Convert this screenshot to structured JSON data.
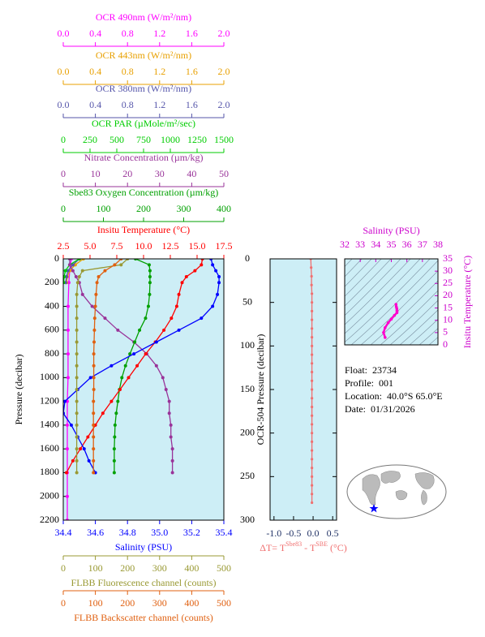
{
  "chart_data": [
    {
      "type": "profile",
      "ylabel": "Pressure (decibar)",
      "ylim": [
        0,
        2200
      ],
      "y_inverted": true,
      "yticks": [
        0,
        200,
        400,
        600,
        800,
        1000,
        1200,
        1400,
        1600,
        1800,
        2000,
        2200
      ],
      "series": [
        {
          "name": "OCR 490nm (W/m²/nm)",
          "color": "#ff00ff",
          "xlim": [
            0,
            2
          ],
          "xticks": [
            {
              "value": 0,
              "label": "0.0"
            },
            0.4,
            0.8,
            1.2,
            1.6,
            {
              "value": 2,
              "label": "2.0"
            }
          ],
          "pressure": [
            0,
            100,
            200,
            400,
            600,
            800,
            1000,
            1200,
            1400,
            1600,
            1800,
            2000,
            2200
          ],
          "values": [
            0.1,
            0.08,
            0.07,
            0.06,
            0.06,
            0.06,
            0.06,
            0.05,
            0.05,
            0.05,
            0.05,
            0.05,
            0.05
          ]
        },
        {
          "name": "OCR 443nm (W/m²/nm)",
          "color": "#e8a000",
          "xlim": [
            0,
            2
          ],
          "xticks": [
            {
              "value": 0,
              "label": "0.0"
            },
            0.4,
            0.8,
            1.2,
            1.6,
            {
              "value": 2,
              "label": "2.0"
            }
          ],
          "pressure": [
            0,
            50,
            100,
            150,
            200
          ],
          "values": [
            0.25,
            0.15,
            0.08,
            0.05,
            0.04
          ]
        },
        {
          "name": "OCR 380nm (W/m²/nm)",
          "color": "#5555aa",
          "xlim": [
            0,
            2
          ],
          "xticks": [
            {
              "value": 0,
              "label": "0.0"
            },
            0.4,
            0.8,
            1.2,
            1.6,
            {
              "value": 2,
              "label": "2.0"
            }
          ],
          "pressure": [
            0,
            50,
            100,
            150,
            200
          ],
          "values": [
            0.2,
            0.12,
            0.06,
            0.04,
            0.03
          ]
        },
        {
          "name": "OCR PAR (µMole/m²/sec)",
          "color": "#00cc00",
          "xlim": [
            0,
            1500
          ],
          "xticks": [
            0,
            250,
            500,
            750,
            1000,
            1250,
            1500
          ],
          "pressure": [
            0,
            50,
            100,
            150,
            200
          ],
          "values": [
            150,
            60,
            20,
            8,
            3
          ]
        },
        {
          "name": "Nitrate Concentration (µm/kg)",
          "color": "#993399",
          "xlim": [
            0,
            50
          ],
          "xticks": [
            0,
            10,
            20,
            30,
            40,
            50
          ],
          "pressure": [
            0,
            50,
            100,
            150,
            200,
            300,
            400,
            500,
            600,
            700,
            800,
            900,
            1000,
            1100,
            1200,
            1300,
            1400,
            1500,
            1600,
            1700,
            1800
          ],
          "values": [
            2,
            2,
            3,
            4,
            5,
            6,
            9,
            13,
            17,
            22,
            26,
            29,
            31,
            32,
            33,
            33,
            33.5,
            33.5,
            34,
            34,
            34
          ]
        },
        {
          "name": "Sbe83 Oxygen Concentration (µm/kg)",
          "color": "#00a000",
          "xlim": [
            0,
            400
          ],
          "xticks": [
            0,
            100,
            200,
            300,
            400
          ],
          "pressure": [
            0,
            50,
            100,
            150,
            200,
            300,
            400,
            500,
            600,
            700,
            800,
            900,
            1000,
            1100,
            1200,
            1300,
            1400,
            1500,
            1600,
            1700,
            1800
          ],
          "values": [
            180,
            214,
            216,
            216,
            216,
            215,
            212,
            205,
            190,
            178,
            166,
            155,
            146,
            140,
            136,
            132,
            129,
            128,
            127,
            127,
            127
          ]
        },
        {
          "name": "Insitu Temperature (°C)",
          "color": "#ff0000",
          "xlim": [
            2.5,
            17.5
          ],
          "xticks": [
            2.5,
            {
              "value": 5,
              "label": "5.0"
            },
            7.5,
            {
              "value": 10,
              "label": "10.0"
            },
            12.5,
            {
              "value": 15,
              "label": "15.0"
            },
            17.5
          ],
          "pressure": [
            0,
            50,
            100,
            150,
            200,
            300,
            400,
            500,
            600,
            700,
            800,
            900,
            1000,
            1100,
            1200,
            1300,
            1400,
            1500,
            1600,
            1700,
            1800
          ],
          "values": [
            15.5,
            15.4,
            14.8,
            14.0,
            13.6,
            13.3,
            13.1,
            12.6,
            11.9,
            11.1,
            10.2,
            9.4,
            8.6,
            7.8,
            7.0,
            6.2,
            5.5,
            4.8,
            4.1,
            3.4,
            2.8
          ]
        },
        {
          "name": "Salinity (PSU)",
          "color": "#0000ff",
          "xlim": [
            34.4,
            35.4
          ],
          "xticks": [
            34.4,
            34.6,
            34.8,
            {
              "value": 35,
              "label": "35.0"
            },
            35.2,
            35.4
          ],
          "pressure": [
            0,
            50,
            100,
            150,
            200,
            300,
            400,
            500,
            600,
            700,
            800,
            900,
            1000,
            1100,
            1200,
            1300,
            1400,
            1500,
            1600,
            1700,
            1800
          ],
          "values": [
            35.32,
            35.33,
            35.35,
            35.37,
            35.37,
            35.36,
            35.33,
            35.26,
            35.12,
            34.98,
            34.84,
            34.7,
            34.57,
            34.49,
            34.41,
            34.4,
            34.45,
            34.49,
            34.53,
            34.56,
            34.6
          ]
        },
        {
          "name": "FLBB Fluorescence channel (counts)",
          "color": "#999933",
          "xlim": [
            0,
            500
          ],
          "xticks": [
            0,
            100,
            200,
            300,
            400,
            500
          ],
          "pressure": [
            0,
            50,
            100,
            150,
            200,
            300,
            400,
            500,
            600,
            700,
            800,
            900,
            1000,
            1100,
            1200,
            1300,
            1400,
            1500,
            1600,
            1700,
            1800
          ],
          "values": [
            200,
            180,
            60,
            50,
            45,
            42,
            42,
            42,
            42,
            42,
            42,
            42,
            42,
            42,
            42,
            42,
            42,
            42,
            42,
            42,
            42
          ]
        },
        {
          "name": "FLBB Backscatter channel (counts)",
          "color": "#e06010",
          "xlim": [
            0,
            500
          ],
          "xticks": [
            0,
            100,
            200,
            300,
            400,
            500
          ],
          "pressure": [
            0,
            50,
            100,
            150,
            200,
            300,
            400,
            500,
            600,
            700,
            800,
            900,
            1000,
            1100,
            1200,
            1300,
            1400,
            1500,
            1600,
            1700,
            1800
          ],
          "values": [
            180,
            160,
            130,
            110,
            105,
            102,
            100,
            98,
            97,
            96,
            95,
            95,
            95,
            95,
            94,
            94,
            94,
            94,
            94,
            94,
            94
          ]
        }
      ]
    },
    {
      "type": "profile",
      "ylabel": "OCR-504 Pressure (decibar)",
      "ylim": [
        0,
        300
      ],
      "y_inverted": true,
      "yticks": [
        0,
        50,
        100,
        150,
        200,
        250,
        300
      ],
      "xlabel": [
        "ΔT= T",
        "Sbe83",
        " - T",
        "SBE",
        " (°C)"
      ],
      "xlim": [
        -1.1,
        0.6
      ],
      "xticks": [
        {
          "value": -1,
          "label": "-1.0"
        },
        -0.5,
        {
          "value": 0,
          "label": "0.0"
        },
        0.5
      ],
      "series": [
        {
          "color": "#f07070",
          "pressure": [
            0,
            10,
            20,
            30,
            40,
            50,
            60,
            70,
            80,
            90,
            100,
            110,
            120,
            130,
            140,
            150,
            160,
            170,
            180,
            190,
            200,
            210,
            220,
            230,
            240,
            250,
            260,
            270,
            280
          ],
          "values": [
            -0.06,
            -0.05,
            -0.04,
            -0.04,
            -0.03,
            -0.03,
            -0.03,
            -0.03,
            -0.03,
            -0.03,
            -0.03,
            -0.03,
            -0.03,
            -0.03,
            -0.03,
            -0.03,
            -0.03,
            -0.03,
            -0.03,
            -0.03,
            -0.03,
            -0.03,
            -0.03,
            -0.03,
            -0.03,
            -0.03,
            -0.03,
            -0.03,
            -0.03
          ]
        }
      ]
    },
    {
      "type": "scatter",
      "xlabel": "Salinity (PSU)",
      "ylabel": "Insitu Temperature (°C)",
      "xlim": [
        32,
        38
      ],
      "xticks": [
        32,
        33,
        34,
        35,
        36,
        37,
        38
      ],
      "ylim": [
        0,
        35
      ],
      "yticks": [
        0,
        5,
        10,
        15,
        20,
        25,
        30,
        35
      ],
      "series": [
        {
          "color": "#ff00cc",
          "x": [
            35.3,
            35.32,
            35.35,
            35.36,
            35.37,
            35.36,
            35.2,
            35.0,
            34.8,
            34.6,
            34.5,
            34.6
          ],
          "values": [
            16.5,
            15.5,
            14.8,
            14.0,
            13.6,
            13.1,
            12.0,
            10.5,
            9.0,
            7.0,
            5.0,
            3.0
          ]
        }
      ]
    }
  ],
  "info": [
    {
      "label": "Float:",
      "value": "23734"
    },
    {
      "label": "Profile:",
      "value": "001"
    },
    {
      "label": "Location:",
      "value": "40.0°S  65.0°E"
    },
    {
      "label": "Date:",
      "value": "01/31/2026"
    }
  ]
}
